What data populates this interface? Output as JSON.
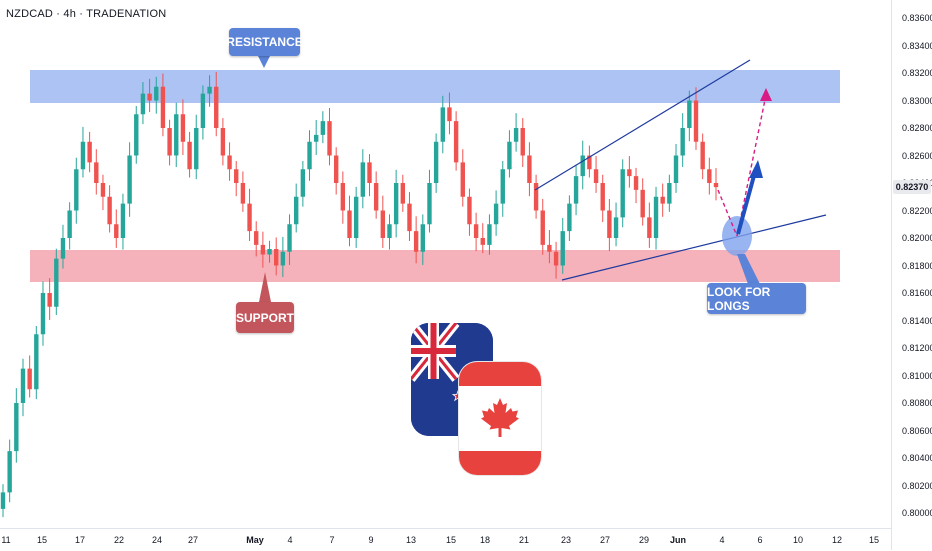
{
  "header": {
    "symbol_label": "NZDCAD · 4h · TRADENATION"
  },
  "price_axis": {
    "labels": [
      "0.83600",
      "0.83400",
      "0.83200",
      "0.83000",
      "0.82800",
      "0.82600",
      "0.82400",
      "0.82200",
      "0.82000",
      "0.81800",
      "0.81600",
      "0.81400",
      "0.81200",
      "0.81000",
      "0.80800",
      "0.80600",
      "0.80400",
      "0.80200",
      "0.80000"
    ],
    "current_price": "0.82370"
  },
  "time_axis": {
    "labels": [
      "11",
      "15",
      "17",
      "22",
      "24",
      "27",
      "May",
      "4",
      "7",
      "9",
      "13",
      "15",
      "18",
      "21",
      "23",
      "27",
      "29",
      "Jun",
      "4",
      "6",
      "10",
      "12",
      "15"
    ]
  },
  "annotations": {
    "resistance_label": "RESISTANCE",
    "support_label": "SUPPORT",
    "longs_label": "LOOK FOR LONGS"
  },
  "flags": {
    "first": "New Zealand flag",
    "second": "Canada flag"
  },
  "colors": {
    "up_candle": "#26a69a",
    "down_candle": "#ef5350",
    "resistance_zone": "#9db8f2",
    "support_zone": "#f5aab3",
    "trendline": "#1e3a9e",
    "projection_arrow": "#d81b85",
    "long_arrow": "#1f4fc0",
    "callout_blue": "#5b83d8",
    "callout_red": "#c2565c"
  },
  "chart_data": {
    "type": "candlestick",
    "symbol": "NZDCAD",
    "timeframe": "4h",
    "current_price": 0.8237,
    "ylim": [
      0.7995,
      0.8365
    ],
    "resistance_zone": [
      0.83,
      0.8322
    ],
    "support_zone": [
      0.8168,
      0.819
    ],
    "closes": [
      0.8015,
      0.8045,
      0.808,
      0.8105,
      0.809,
      0.813,
      0.816,
      0.815,
      0.8185,
      0.82,
      0.822,
      0.825,
      0.827,
      0.8255,
      0.824,
      0.823,
      0.821,
      0.82,
      0.8225,
      0.826,
      0.829,
      0.8305,
      0.83,
      0.831,
      0.828,
      0.826,
      0.829,
      0.827,
      0.825,
      0.828,
      0.8305,
      0.831,
      0.828,
      0.826,
      0.825,
      0.824,
      0.8225,
      0.8205,
      0.8195,
      0.8188,
      0.8192,
      0.818,
      0.819,
      0.821,
      0.823,
      0.825,
      0.827,
      0.8275,
      0.8285,
      0.826,
      0.824,
      0.822,
      0.82,
      0.823,
      0.8255,
      0.824,
      0.822,
      0.82,
      0.821,
      0.824,
      0.8225,
      0.8205,
      0.819,
      0.821,
      0.824,
      0.827,
      0.8295,
      0.8285,
      0.8255,
      0.823,
      0.821,
      0.82,
      0.8195,
      0.821,
      0.8225,
      0.825,
      0.827,
      0.828,
      0.826,
      0.824,
      0.822,
      0.8195,
      0.819,
      0.818,
      0.8205,
      0.8225,
      0.8245,
      0.826,
      0.825,
      0.824,
      0.822,
      0.82,
      0.8215,
      0.825,
      0.8245,
      0.8235,
      0.8215,
      0.82,
      0.823,
      0.8225,
      0.824,
      0.826,
      0.828,
      0.83,
      0.827,
      0.825,
      0.824,
      0.8237
    ],
    "projection_up": [
      0.8237,
      0.8205,
      0.83
    ],
    "long_arrow_target": 0.825
  }
}
